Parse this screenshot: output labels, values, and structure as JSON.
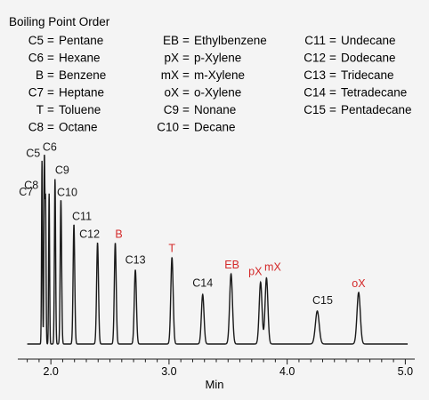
{
  "chart_data": {
    "type": "line",
    "legend_title": "Boiling Point Order",
    "legend_columns": [
      [
        {
          "code": "C5",
          "name": "Pentane"
        },
        {
          "code": "C6",
          "name": "Hexane"
        },
        {
          "code": "B",
          "name": "Benzene"
        },
        {
          "code": "C7",
          "name": "Heptane"
        },
        {
          "code": "T",
          "name": "Toluene"
        },
        {
          "code": "C8",
          "name": "Octane"
        }
      ],
      [
        {
          "code": "EB",
          "name": "Ethylbenzene"
        },
        {
          "code": "pX",
          "name": "p-Xylene"
        },
        {
          "code": "mX",
          "name": "m-Xylene"
        },
        {
          "code": "oX",
          "name": "o-Xylene"
        },
        {
          "code": "C9",
          "name": "Nonane"
        },
        {
          "code": "C10",
          "name": "Decane"
        }
      ],
      [
        {
          "code": "C11",
          "name": "Undecane"
        },
        {
          "code": "C12",
          "name": "Dodecane"
        },
        {
          "code": "C13",
          "name": "Tridecane"
        },
        {
          "code": "C14",
          "name": "Tetradecane"
        },
        {
          "code": "C15",
          "name": "Pentadecane"
        }
      ]
    ],
    "xlabel": "Min",
    "xlim": [
      1.72,
      5.08
    ],
    "ylim": [
      0,
      1
    ],
    "xticks": [
      2.0,
      3.0,
      4.0,
      5.0
    ],
    "xtick_labels": [
      "2.0",
      "3.0",
      "4.0",
      "5.0"
    ],
    "colors": {
      "line": "#1a1a1a",
      "aromatic_label": "#d42a2a",
      "label": "#1a1a1a"
    },
    "peaks": [
      {
        "label": "C5",
        "rt": 1.925,
        "height": 0.89,
        "width": 0.004,
        "aromatic": false
      },
      {
        "label": "C6",
        "rt": 1.945,
        "height": 0.89,
        "width": 0.004,
        "aromatic": false
      },
      {
        "label": "C7",
        "rt": 1.955,
        "height": 0.68,
        "width": 0.004,
        "aromatic": false
      },
      {
        "label": "C8",
        "rt": 1.985,
        "height": 0.73,
        "width": 0.004,
        "aromatic": false
      },
      {
        "label": "C9",
        "rt": 2.035,
        "height": 0.8,
        "width": 0.005,
        "aromatic": false
      },
      {
        "label": "C10",
        "rt": 2.085,
        "height": 0.7,
        "width": 0.006,
        "aromatic": false
      },
      {
        "label": "C11",
        "rt": 2.195,
        "height": 0.58,
        "width": 0.007,
        "aromatic": false
      },
      {
        "label": "C12",
        "rt": 2.395,
        "height": 0.49,
        "width": 0.008,
        "aromatic": false
      },
      {
        "label": "B",
        "rt": 2.545,
        "height": 0.49,
        "width": 0.008,
        "aromatic": true
      },
      {
        "label": "C13",
        "rt": 2.715,
        "height": 0.36,
        "width": 0.009,
        "aromatic": false
      },
      {
        "label": "T",
        "rt": 3.025,
        "height": 0.42,
        "width": 0.01,
        "aromatic": true
      },
      {
        "label": "C14",
        "rt": 3.285,
        "height": 0.24,
        "width": 0.011,
        "aromatic": false
      },
      {
        "label": "EB",
        "rt": 3.525,
        "height": 0.34,
        "width": 0.012,
        "aromatic": true
      },
      {
        "label": "pX",
        "rt": 3.775,
        "height": 0.3,
        "width": 0.012,
        "aromatic": true
      },
      {
        "label": "mX",
        "rt": 3.825,
        "height": 0.32,
        "width": 0.012,
        "aromatic": true
      },
      {
        "label": "C15",
        "rt": 4.255,
        "height": 0.16,
        "width": 0.016,
        "aromatic": false
      },
      {
        "label": "oX",
        "rt": 4.605,
        "height": 0.25,
        "width": 0.014,
        "aromatic": true
      }
    ]
  }
}
